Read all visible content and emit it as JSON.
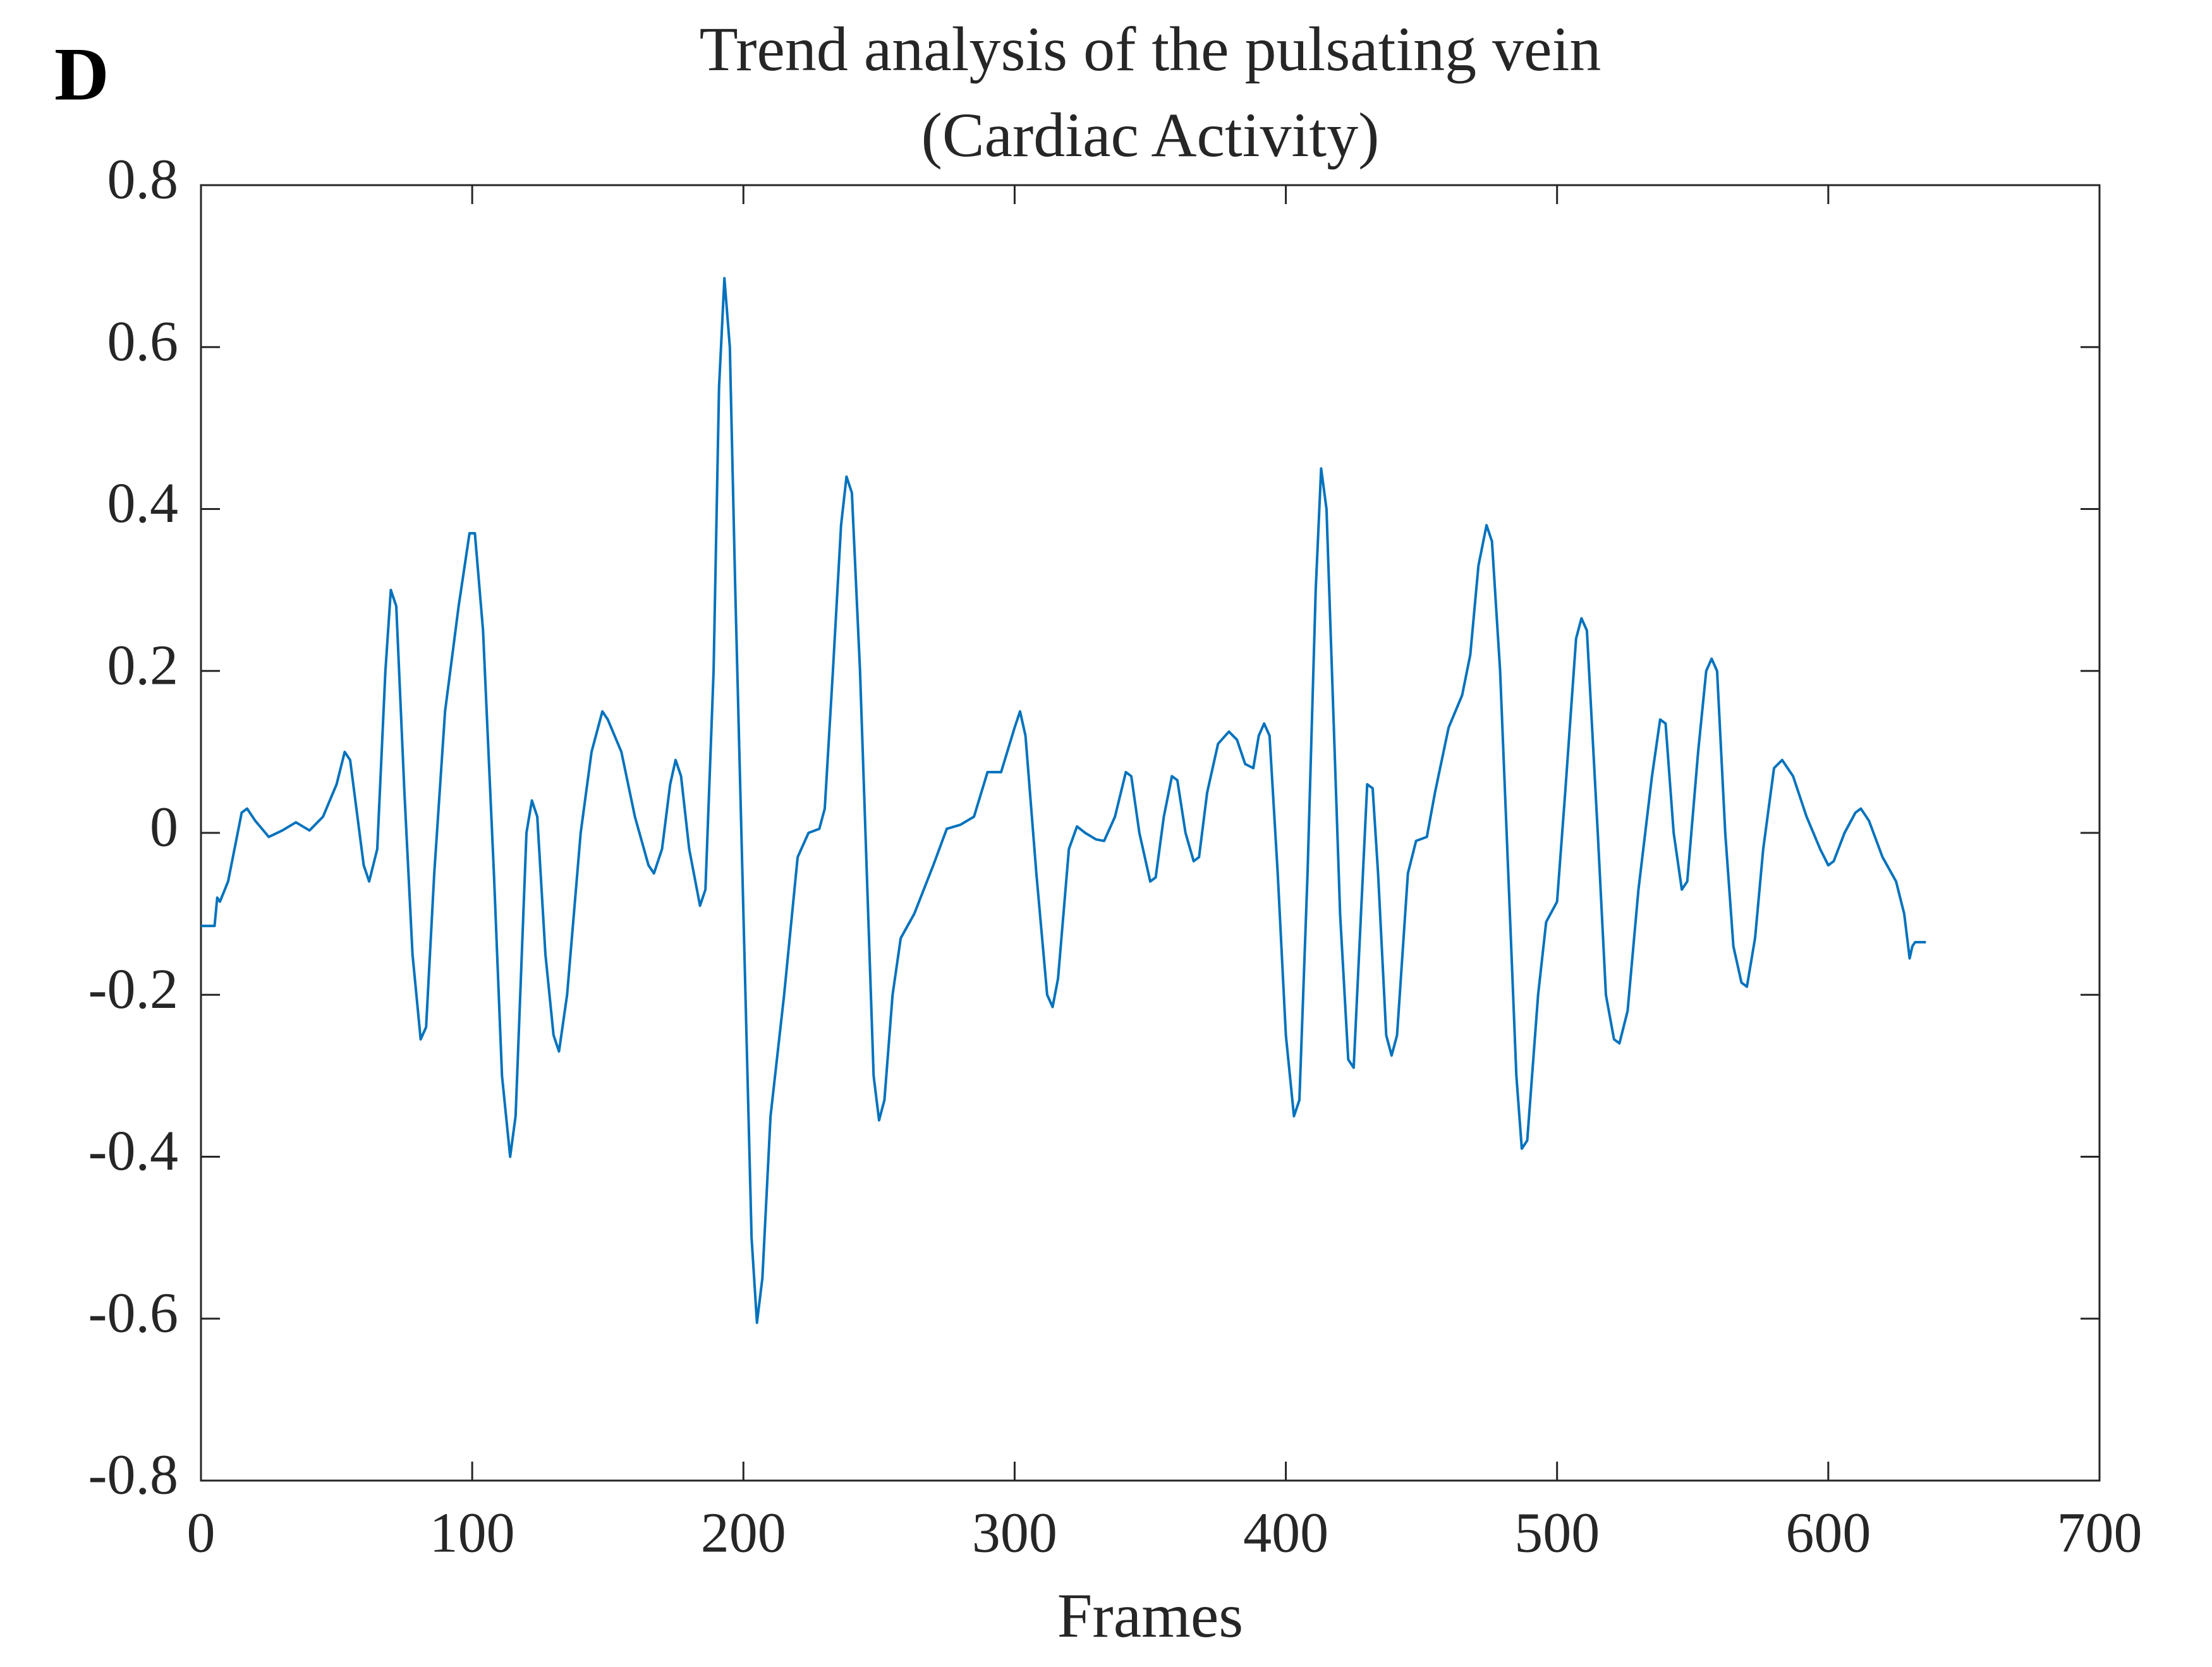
{
  "panel_label": "D",
  "chart_data": {
    "type": "line",
    "title": [
      "Trend analysis of the pulsating vein",
      "(Cardiac Activity)"
    ],
    "xlabel": "Frames",
    "xlim": [
      0,
      700
    ],
    "xticks": [
      0,
      100,
      200,
      300,
      400,
      500,
      600,
      700
    ],
    "ylim": [
      -0.8,
      0.8
    ],
    "yticks": [
      -0.8,
      -0.6,
      -0.4,
      -0.2,
      0,
      0.2,
      0.4,
      0.6,
      0.8
    ],
    "grid": false,
    "series": [
      {
        "color": "#0072BD",
        "x": [
          0,
          5,
          6,
          7,
          10,
          15,
          17,
          20,
          25,
          30,
          35,
          40,
          45,
          50,
          53,
          55,
          60,
          62,
          65,
          68,
          70,
          72,
          75,
          78,
          81,
          83,
          86,
          90,
          95,
          99,
          101,
          104,
          108,
          111,
          114,
          116,
          120,
          122,
          124,
          127,
          130,
          132,
          135,
          140,
          144,
          148,
          150,
          155,
          160,
          165,
          167,
          170,
          173,
          175,
          177,
          180,
          184,
          186,
          189,
          191,
          193,
          195,
          197,
          200,
          203,
          205,
          207,
          210,
          215,
          220,
          224,
          228,
          230,
          233,
          236,
          238,
          240,
          243,
          246,
          248,
          250,
          252,
          255,
          258,
          263,
          270,
          275,
          280,
          285,
          290,
          295,
          300,
          302,
          304,
          308,
          312,
          314,
          316,
          320,
          323,
          326,
          330,
          333,
          337,
          341,
          343,
          346,
          350,
          352,
          355,
          358,
          360,
          363,
          366,
          368,
          371,
          375,
          379,
          382,
          385,
          388,
          390,
          392,
          394,
          397,
          400,
          403,
          405,
          408,
          411,
          413,
          415,
          417,
          420,
          423,
          425,
          427,
          430,
          432,
          434,
          437,
          439,
          441,
          445,
          448,
          452,
          455,
          460,
          465,
          468,
          471,
          474,
          476,
          479,
          482,
          485,
          487,
          489,
          493,
          496,
          500,
          503,
          507,
          509,
          511,
          515,
          518,
          521,
          523,
          526,
          530,
          535,
          538,
          540,
          543,
          546,
          548,
          552,
          555,
          557,
          559,
          562,
          565,
          568,
          570,
          573,
          576,
          580,
          583,
          587,
          592,
          597,
          600,
          602,
          606,
          610,
          612,
          615,
          620,
          625,
          628,
          630,
          631,
          632,
          636
        ],
        "values": [
          -0.115,
          -0.115,
          -0.08,
          -0.085,
          -0.06,
          0.025,
          0.03,
          0.015,
          -0.005,
          0.003,
          0.013,
          0.003,
          0.02,
          0.06,
          0.1,
          0.09,
          -0.04,
          -0.06,
          -0.02,
          0.2,
          0.3,
          0.28,
          0.05,
          -0.15,
          -0.255,
          -0.24,
          -0.05,
          0.15,
          0.28,
          0.37,
          0.37,
          0.25,
          -0.05,
          -0.3,
          -0.4,
          -0.35,
          0,
          0.04,
          0.02,
          -0.15,
          -0.25,
          -0.27,
          -0.2,
          0,
          0.1,
          0.15,
          0.14,
          0.1,
          0.02,
          -0.04,
          -0.05,
          -0.02,
          0.06,
          0.09,
          0.07,
          -0.02,
          -0.09,
          -0.07,
          0.2,
          0.55,
          0.685,
          0.6,
          0.3,
          -0.1,
          -0.5,
          -0.605,
          -0.55,
          -0.35,
          -0.2,
          -0.03,
          0,
          0.005,
          0.03,
          0.2,
          0.38,
          0.44,
          0.42,
          0.2,
          -0.1,
          -0.3,
          -0.355,
          -0.33,
          -0.2,
          -0.13,
          -0.1,
          -0.04,
          0.005,
          0.01,
          0.02,
          0.075,
          0.075,
          0.13,
          0.15,
          0.12,
          -0.05,
          -0.2,
          -0.215,
          -0.18,
          -0.02,
          0.008,
          0,
          -0.008,
          -0.01,
          0.02,
          0.075,
          0.07,
          0,
          -0.06,
          -0.055,
          0.02,
          0.07,
          0.065,
          0,
          -0.035,
          -0.03,
          0.05,
          0.11,
          0.125,
          0.115,
          0.085,
          0.08,
          0.12,
          0.135,
          0.12,
          -0.05,
          -0.25,
          -0.35,
          -0.33,
          -0.05,
          0.3,
          0.45,
          0.4,
          0.2,
          -0.1,
          -0.28,
          -0.29,
          -0.15,
          0.06,
          0.055,
          -0.05,
          -0.25,
          -0.275,
          -0.25,
          -0.05,
          -0.01,
          -0.005,
          0.05,
          0.13,
          0.17,
          0.22,
          0.33,
          0.38,
          0.36,
          0.2,
          -0.05,
          -0.3,
          -0.39,
          -0.38,
          -0.2,
          -0.11,
          -0.085,
          0.05,
          0.24,
          0.265,
          0.25,
          0,
          -0.2,
          -0.255,
          -0.26,
          -0.22,
          -0.07,
          0.07,
          0.14,
          0.135,
          0,
          -0.07,
          -0.06,
          0.1,
          0.2,
          0.215,
          0.2,
          0,
          -0.14,
          -0.185,
          -0.19,
          -0.13,
          -0.02,
          0.08,
          0.09,
          0.07,
          0.02,
          -0.02,
          -0.04,
          -0.035,
          0,
          0.025,
          0.03,
          0.015,
          -0.03,
          -0.06,
          -0.1,
          -0.155,
          -0.14,
          -0.135,
          -0.135
        ]
      }
    ]
  }
}
